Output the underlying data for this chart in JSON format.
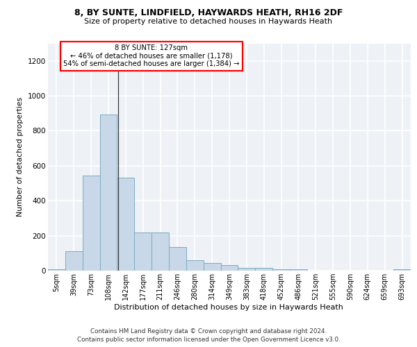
{
  "title_line1": "8, BY SUNTE, LINDFIELD, HAYWARDS HEATH, RH16 2DF",
  "title_line2": "Size of property relative to detached houses in Haywards Heath",
  "xlabel": "Distribution of detached houses by size in Haywards Heath",
  "ylabel": "Number of detached properties",
  "bar_labels": [
    "5sqm",
    "39sqm",
    "73sqm",
    "108sqm",
    "142sqm",
    "177sqm",
    "211sqm",
    "246sqm",
    "280sqm",
    "314sqm",
    "349sqm",
    "383sqm",
    "418sqm",
    "452sqm",
    "486sqm",
    "521sqm",
    "555sqm",
    "590sqm",
    "624sqm",
    "659sqm",
    "693sqm"
  ],
  "bar_values": [
    8,
    110,
    545,
    895,
    530,
    220,
    220,
    135,
    60,
    45,
    30,
    15,
    15,
    8,
    8,
    0,
    0,
    0,
    0,
    0,
    8
  ],
  "bar_color": "#c8d8e8",
  "bar_edge_color": "#7aabbf",
  "ylim": [
    0,
    1300
  ],
  "yticks": [
    0,
    200,
    400,
    600,
    800,
    1000,
    1200
  ],
  "annotation_line1": "8 BY SUNTE: 127sqm",
  "annotation_line2": "← 46% of detached houses are smaller (1,178)",
  "annotation_line3": "54% of semi-detached houses are larger (1,384) →",
  "footer_line1": "Contains HM Land Registry data © Crown copyright and database right 2024.",
  "footer_line2": "Contains public sector information licensed under the Open Government Licence v3.0.",
  "background_color": "#eef2f7",
  "grid_color": "#ffffff",
  "property_bin_float": 3.559,
  "fig_width": 6.0,
  "fig_height": 5.0,
  "dpi": 100
}
